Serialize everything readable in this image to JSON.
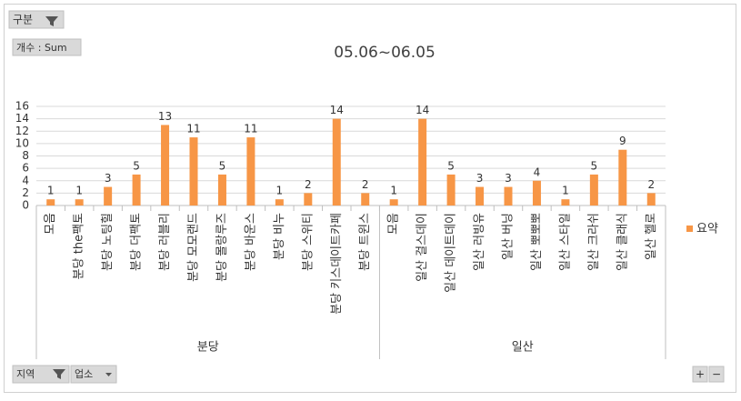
{
  "chart_data": {
    "type": "bar",
    "title": "05.06~06.05",
    "groups": [
      {
        "name": "분당",
        "categories": [
          "모음",
          "분당 the팩토",
          "분당 노팅힐",
          "분당 더팩토",
          "분당 러블리",
          "분당 모모랜드",
          "분당 몰랑루즈",
          "분당 바운스",
          "분당 비누",
          "분당 스위티",
          "분당 키스데이트카페",
          "분당 트윈스"
        ]
      },
      {
        "name": "일산",
        "categories": [
          "모음",
          "일산 걸스데이",
          "일산 데이트데이",
          "일산 러빙유",
          "일산 버닝",
          "일산 뽀뽀뽀",
          "일산 스타일",
          "일산 크라쉬",
          "일산 클래식",
          "일산 헬로"
        ]
      }
    ],
    "series": [
      {
        "name": "요약",
        "color": "#f79646",
        "values": [
          1,
          1,
          3,
          5,
          13,
          11,
          5,
          11,
          1,
          2,
          14,
          2,
          1,
          14,
          5,
          3,
          3,
          4,
          1,
          5,
          9,
          2
        ]
      }
    ],
    "ylim": [
      0,
      16
    ],
    "yticks": [
      0,
      2,
      4,
      6,
      8,
      10,
      12,
      14,
      16
    ],
    "grid": true,
    "legend": "right"
  },
  "controls": {
    "row_field": "구분",
    "value_field": "개수 : Sum",
    "axis_fields": [
      "지역",
      "업소"
    ],
    "zoom": [
      "+",
      "−"
    ]
  }
}
